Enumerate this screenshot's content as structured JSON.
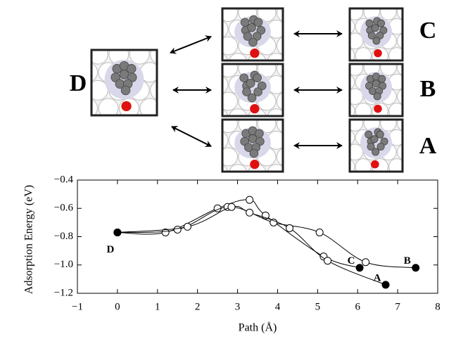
{
  "structures": {
    "labels": [
      "D",
      "C",
      "B",
      "A"
    ]
  },
  "chart_data": {
    "type": "line",
    "xlabel": "Path (Å)",
    "ylabel": "Adsorption Energy (eV)",
    "xlim": [
      -1,
      8
    ],
    "ylim": [
      -1.2,
      -0.4
    ],
    "xticks": [
      {
        "value": -1,
        "label": "−1"
      },
      0,
      1,
      2,
      3,
      4,
      5,
      6,
      7,
      8
    ],
    "yticks": [
      {
        "value": -0.4,
        "label": "−0.4"
      },
      {
        "value": -0.6,
        "label": "−0.6"
      },
      {
        "value": -0.8,
        "label": "−0.8"
      },
      {
        "value": -1.0,
        "label": "−1.0"
      },
      {
        "value": -1.2,
        "label": "−1.2"
      }
    ],
    "start_label": "D",
    "color": "#000000",
    "series": [
      {
        "name": "C",
        "x": [
          0,
          1.2,
          2.5,
          3.3,
          3.7,
          5.15,
          6.05
        ],
        "values": [
          -0.77,
          -0.77,
          -0.6,
          -0.54,
          -0.65,
          -0.94,
          -1.02
        ]
      },
      {
        "name": "B",
        "x": [
          0,
          1.5,
          2.75,
          3.9,
          5.05,
          6.2,
          7.45
        ],
        "values": [
          -0.77,
          -0.75,
          -0.59,
          -0.7,
          -0.77,
          -0.98,
          -1.02
        ]
      },
      {
        "name": "A",
        "x": [
          0,
          1.75,
          2.85,
          3.3,
          4.3,
          5.25,
          6.7
        ],
        "values": [
          -0.77,
          -0.73,
          -0.59,
          -0.63,
          -0.74,
          -0.97,
          -1.14
        ]
      }
    ]
  }
}
